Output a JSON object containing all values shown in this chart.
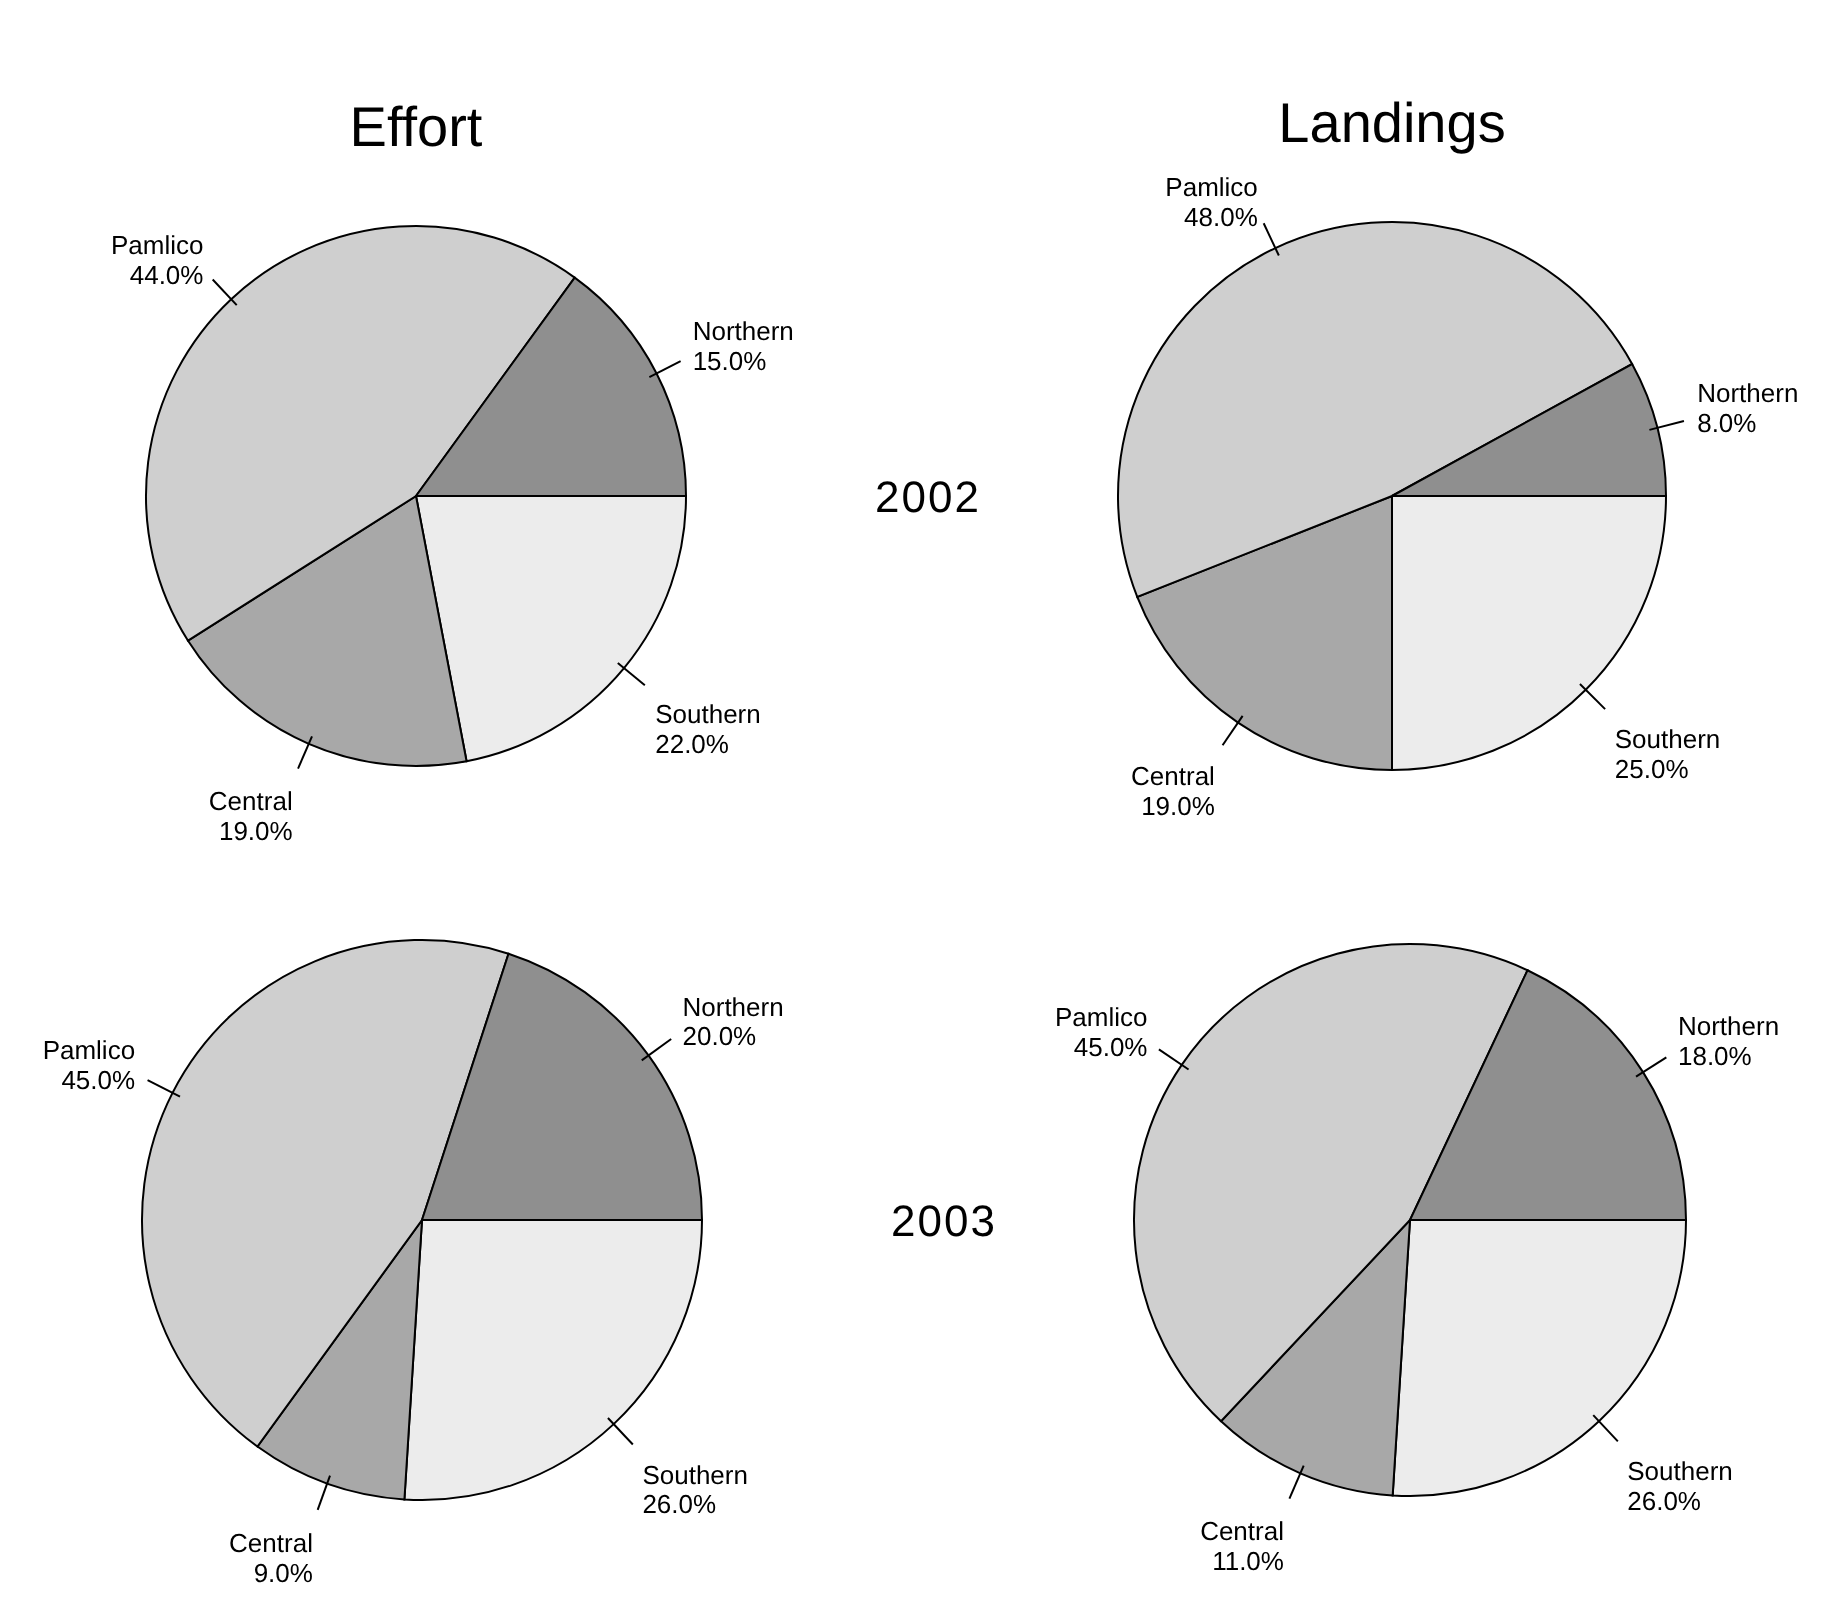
{
  "chart_data": [
    {
      "type": "pie",
      "title": "Effort",
      "categories": [
        "Southern",
        "Central",
        "Pamlico",
        "Northern"
      ],
      "values": [
        22,
        19,
        44,
        15
      ],
      "value_labels": [
        "22.0%",
        "19.0%",
        "44.0%",
        "15.0%"
      ],
      "colors": [
        "#ececec",
        "#a8a8a8",
        "#cfcfcf",
        "#8f8f8f"
      ]
    },
    {
      "type": "pie",
      "title": "Landings",
      "categories": [
        "Southern",
        "Central",
        "Pamlico",
        "Northern"
      ],
      "values": [
        25,
        19,
        48,
        8
      ],
      "value_labels": [
        "25.0%",
        "19.0%",
        "48.0%",
        "8.0%"
      ],
      "colors": [
        "#ececec",
        "#a8a8a8",
        "#cfcfcf",
        "#8f8f8f"
      ],
      "annotations": [
        "2002"
      ]
    },
    {
      "type": "pie",
      "categories": [
        "Southern",
        "Central",
        "Pamlico",
        "Northern"
      ],
      "values": [
        26,
        9,
        45,
        20
      ],
      "value_labels": [
        "26.0%",
        "9.0%",
        "45.0%",
        "20.0%"
      ],
      "colors": [
        "#ececec",
        "#a8a8a8",
        "#cfcfcf",
        "#8f8f8f"
      ]
    },
    {
      "type": "pie",
      "categories": [
        "Southern",
        "Central",
        "Pamlico",
        "Northern"
      ],
      "values": [
        26,
        11,
        45,
        18
      ],
      "value_labels": [
        "26.0%",
        "11.0%",
        "45.0%",
        "18.0%"
      ],
      "colors": [
        "#ececec",
        "#a8a8a8",
        "#cfcfcf",
        "#8f8f8f"
      ],
      "annotations": [
        "2003"
      ]
    }
  ]
}
